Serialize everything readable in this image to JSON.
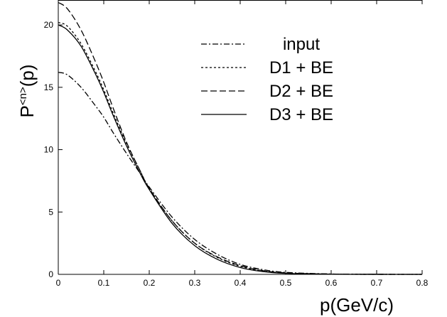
{
  "chart_data": {
    "type": "line",
    "xlabel": "p(GeV/c)",
    "ylabel": "P<n>(p)",
    "xlim": [
      0,
      0.8
    ],
    "ylim": [
      0,
      22
    ],
    "xticks": [
      "0",
      "0.1",
      "0.2",
      "0.3",
      "0.4",
      "0.5",
      "0.6",
      "0.7",
      "0.8"
    ],
    "yticks": [
      "0",
      "5",
      "10",
      "15",
      "20"
    ],
    "grid": false,
    "legend": "top-right",
    "series": [
      {
        "name": "input",
        "dash": "dash-dot",
        "x": [
          0,
          0.02,
          0.05,
          0.08,
          0.1,
          0.12,
          0.15,
          0.18,
          0.2,
          0.25,
          0.3,
          0.35,
          0.4,
          0.45,
          0.5,
          0.6,
          0.7,
          0.8
        ],
        "y": [
          16.2,
          16.0,
          15.0,
          13.6,
          12.6,
          11.4,
          9.7,
          8.1,
          7.0,
          4.6,
          2.8,
          1.6,
          0.8,
          0.38,
          0.16,
          0.03,
          0.005,
          0
        ]
      },
      {
        "name": "D1 + BE",
        "dash": "dotted",
        "x": [
          0,
          0.02,
          0.05,
          0.08,
          0.1,
          0.12,
          0.15,
          0.18,
          0.2,
          0.25,
          0.3,
          0.35,
          0.4,
          0.45,
          0.5,
          0.6,
          0.7,
          0.8
        ],
        "y": [
          20.2,
          19.9,
          18.5,
          16.4,
          14.8,
          13.0,
          10.5,
          8.3,
          6.9,
          4.3,
          2.5,
          1.35,
          0.65,
          0.28,
          0.11,
          0.02,
          0.003,
          0
        ]
      },
      {
        "name": "D2 + BE",
        "dash": "dashed",
        "x": [
          0,
          0.02,
          0.05,
          0.08,
          0.1,
          0.12,
          0.15,
          0.18,
          0.2,
          0.25,
          0.3,
          0.35,
          0.4,
          0.45,
          0.5,
          0.6,
          0.7,
          0.8
        ],
        "y": [
          21.8,
          21.3,
          19.6,
          17.2,
          15.4,
          13.4,
          10.6,
          8.3,
          6.9,
          4.3,
          2.5,
          1.4,
          0.7,
          0.3,
          0.12,
          0.02,
          0.003,
          0
        ]
      },
      {
        "name": "D3 + BE",
        "dash": "solid",
        "x": [
          0,
          0.02,
          0.05,
          0.08,
          0.1,
          0.12,
          0.15,
          0.18,
          0.2,
          0.25,
          0.3,
          0.35,
          0.4,
          0.45,
          0.5,
          0.6,
          0.7,
          0.8
        ],
        "y": [
          20.0,
          19.6,
          18.3,
          16.2,
          14.6,
          12.8,
          10.3,
          8.1,
          6.8,
          4.1,
          2.3,
          1.2,
          0.55,
          0.22,
          0.08,
          0.01,
          0.002,
          0
        ]
      }
    ]
  }
}
